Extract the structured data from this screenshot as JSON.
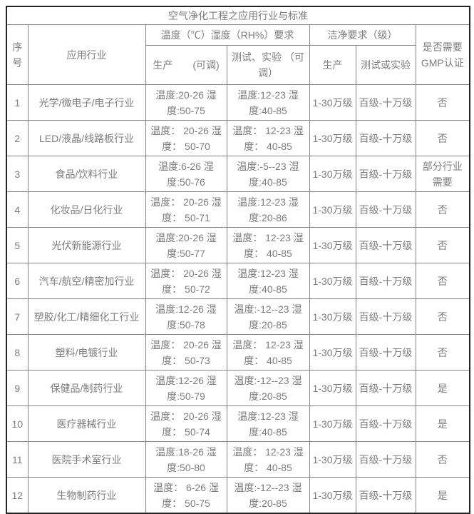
{
  "page": {
    "background_color": "#ffffff",
    "text_color": "#7d7d7d",
    "border_outer_color": "#242424",
    "border_inner_color": "#848484"
  },
  "table": {
    "title": "空气净化工程之应用行业与标准",
    "headers": {
      "serial": "序号",
      "industry": "应用行业",
      "group_temp_humidity": "温度（℃）湿度（RH%）要求",
      "sub_production_adjustable": "生产　　(可调)",
      "sub_test_experiment_adjustable": "测试、实验 （可调）",
      "group_cleanliness": "洁净要求（级）",
      "sub_production": "生产",
      "sub_test_or_experiment": "测试或实验",
      "gmp": "是否需要GMP认证"
    },
    "rows": [
      {
        "no": "1",
        "industry": "光学/微电子/电子行业",
        "prod_th": "温度:20-26 湿度:50-75",
        "test_th": "温度:12-23 湿度:40-85",
        "prod_clean": "1-30万级",
        "test_clean": "百级-十万级",
        "gmp": "否"
      },
      {
        "no": "2",
        "industry": "LED/液晶/线路板行业",
        "prod_th": "温度： 20-26 湿度： 50-70",
        "test_th": "温度： 12-23 湿度： 40-85",
        "prod_clean": "1-30万级",
        "test_clean": "百级-十万级",
        "gmp": "否"
      },
      {
        "no": "3",
        "industry": "食品/饮料行业",
        "prod_th": "温度:6-26 湿度:50-76",
        "test_th": "温度:-5--23 湿度:40-85",
        "prod_clean": "1-30万级",
        "test_clean": "百级-十万级",
        "gmp": "部分行业需要"
      },
      {
        "no": "4",
        "industry": "化妆品/日化行业",
        "prod_th": "温度： 20-26 湿度： 50-71",
        "test_th": "温度:12-23 湿度:20-86",
        "prod_clean": "1-30万级",
        "test_clean": "百级-十万级",
        "gmp": "否"
      },
      {
        "no": "5",
        "industry": "光伏新能源行业",
        "prod_th": "温度:20-26 湿度:50-77",
        "test_th": "温度： 12-23 湿度： 40-85",
        "prod_clean": "1-30万级",
        "test_clean": "百级-十万级",
        "gmp": "否"
      },
      {
        "no": "6",
        "industry": "汽车/航空/精密加行业",
        "prod_th": "温度： 20-26 湿度： 50-72",
        "test_th": "温度:12-23 湿度:40-85",
        "prod_clean": "1-30万级",
        "test_clean": "百级-十万级",
        "gmp": "否"
      },
      {
        "no": "7",
        "industry": "塑胶/化工/精细化工行业",
        "prod_th": "温度:12-26 湿度:50-78",
        "test_th": "温度:-12--23 湿度:20-85",
        "prod_clean": "1-30万级",
        "test_clean": "百级-十万级",
        "gmp": "否"
      },
      {
        "no": "8",
        "industry": "塑料/电镀行业",
        "prod_th": "温度： 20-26 湿度： 50-73",
        "test_th": "温度： 12-23 湿度： 40-85",
        "prod_clean": "1-30万级",
        "test_clean": "百级-十万级",
        "gmp": "否"
      },
      {
        "no": "9",
        "industry": "保健品/制药行业",
        "prod_th": "温度:12-26 湿度:50-79",
        "test_th": "温度:-12--23 湿度:20-85",
        "prod_clean": "1-30万级",
        "test_clean": "百级-十万级",
        "gmp": "是"
      },
      {
        "no": "10",
        "industry": "医疗器械行业",
        "prod_th": "温度： 20-26 湿度： 50-74",
        "test_th": "温度:12-23 湿度:40-85",
        "prod_clean": "1-30万级",
        "test_clean": "百级-十万级",
        "gmp": "是"
      },
      {
        "no": "11",
        "industry": "医院手术室行业",
        "prod_th": "温度:18-26 湿度:50-80",
        "test_th": "温度： 12-23 湿度： 40-85",
        "prod_clean": "1-30万级",
        "test_clean": "百级-十万级",
        "gmp": "否"
      },
      {
        "no": "12",
        "industry": "生物制药行业",
        "prod_th": "温度： 6-26 湿度： 50-75",
        "test_th": "温度:-12--23 湿度:20-85",
        "prod_clean": "1-30万级",
        "test_clean": "百级-十万级",
        "gmp": "是"
      }
    ]
  }
}
